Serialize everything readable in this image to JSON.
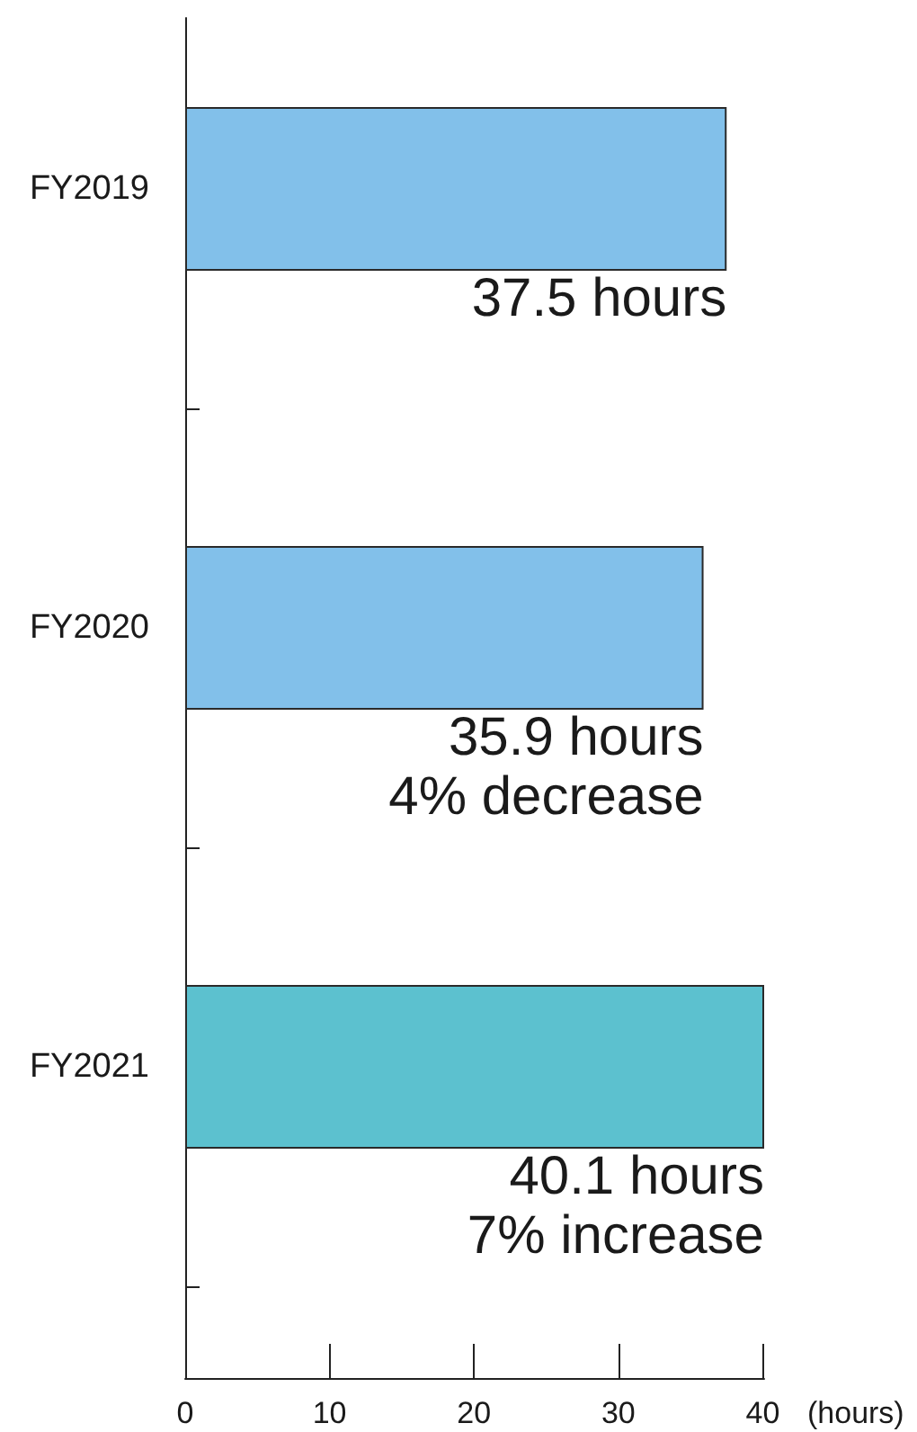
{
  "chart_data": {
    "type": "bar",
    "orientation": "horizontal",
    "categories": [
      "FY2019",
      "FY2020",
      "FY2021"
    ],
    "values": [
      37.5,
      35.9,
      40.1
    ],
    "colors": [
      "#82c0ea",
      "#82c0ea",
      "#5cc1cf"
    ],
    "xlim": [
      0,
      40.1
    ],
    "xticks": [
      0,
      10,
      20,
      30,
      40
    ],
    "xlabel": "(hours)",
    "value_labels": [
      "37.5 hours",
      "35.9 hours",
      "40.1 hours"
    ],
    "annotations": [
      {
        "text": "4% decrease",
        "x": 35.9,
        "y": "FY2020"
      },
      {
        "text": "7% increase",
        "x": 40.1,
        "y": "FY2021"
      }
    ]
  }
}
